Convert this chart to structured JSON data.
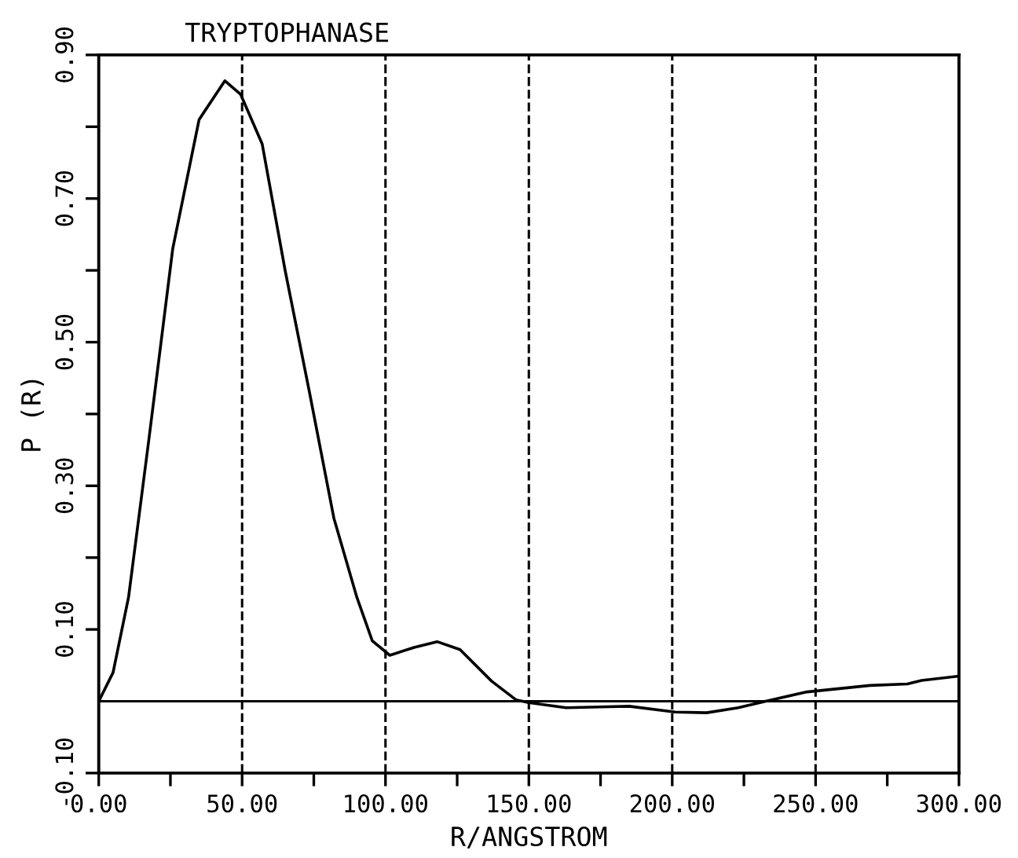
{
  "chart_data": {
    "type": "line",
    "title": "TRYPTOPHANASE",
    "xlabel": "R/ANGSTROM",
    "ylabel": "P (R)",
    "x": [
      0,
      5,
      10.4,
      17.5,
      25.8,
      35,
      44,
      49.5,
      57,
      65,
      73.5,
      82,
      90,
      95.4,
      101.5,
      110,
      118,
      126,
      137,
      145.5,
      150,
      163,
      185,
      201,
      212,
      223,
      232.6,
      247,
      269,
      282,
      287,
      300
    ],
    "series": [
      {
        "color": "#000000",
        "values": [
          0,
          0.04,
          0.145,
          0.365,
          0.63,
          0.81,
          0.864,
          0.845,
          0.776,
          0.6,
          0.43,
          0.255,
          0.145,
          0.084,
          0.064,
          0.075,
          0.083,
          0.072,
          0.028,
          0.002,
          -0.002,
          -0.009,
          -0.007,
          -0.015,
          -0.016,
          -0.009,
          0,
          0.013,
          0.022,
          0.024,
          0.029,
          0.035
        ]
      }
    ],
    "xlim": [
      0,
      300
    ],
    "ylim": [
      -0.1,
      0.9
    ],
    "xticks": [
      {
        "value": 0,
        "label": "0.00"
      },
      {
        "value": 25,
        "label": null
      },
      {
        "value": 50,
        "label": "50.00"
      },
      {
        "value": 75,
        "label": null
      },
      {
        "value": 100,
        "label": "100.00"
      },
      {
        "value": 125,
        "label": null
      },
      {
        "value": 150,
        "label": "150.00"
      },
      {
        "value": 175,
        "label": null
      },
      {
        "value": 200,
        "label": "200.00"
      },
      {
        "value": 225,
        "label": null
      },
      {
        "value": 250,
        "label": "250.00"
      },
      {
        "value": 275,
        "label": null
      },
      {
        "value": 300,
        "label": "300.00"
      }
    ],
    "yticks": [
      {
        "value": -0.1,
        "label": "-0.10"
      },
      {
        "value": 0.1,
        "label": "0.10"
      },
      {
        "value": 0.2,
        "label": null
      },
      {
        "value": 0.3,
        "label": "0.30"
      },
      {
        "value": 0.4,
        "label": null
      },
      {
        "value": 0.5,
        "label": "0.50"
      },
      {
        "value": 0.6,
        "label": null
      },
      {
        "value": 0.7,
        "label": "0.70"
      },
      {
        "value": 0.8,
        "label": null
      },
      {
        "value": 0.9,
        "label": "0.90"
      }
    ],
    "ref_lines": [
      {
        "axis": "y",
        "value": 0,
        "color": "#000000",
        "line_style": "solid"
      },
      {
        "axis": "x",
        "value": 50,
        "color": "#000000",
        "line_style": "dashed"
      },
      {
        "axis": "x",
        "value": 100,
        "color": "#000000",
        "line_style": "dashed"
      },
      {
        "axis": "x",
        "value": 150,
        "color": "#000000",
        "line_style": "dashed"
      },
      {
        "axis": "x",
        "value": 200,
        "color": "#000000",
        "line_style": "dashed"
      },
      {
        "axis": "x",
        "value": 250,
        "color": "#000000",
        "line_style": "dashed"
      }
    ],
    "grid": false,
    "legend": false,
    "marker": "none",
    "line_style": "solid"
  }
}
